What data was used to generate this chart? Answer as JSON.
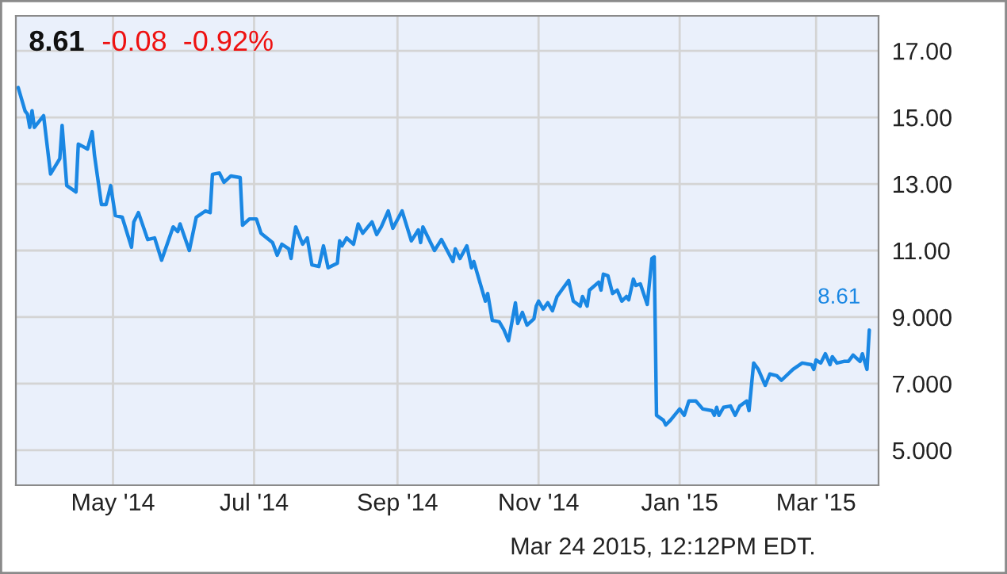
{
  "chart_data": {
    "type": "line",
    "title": "8.61",
    "subtitle": "-0.08  -0.92%",
    "annotations": [
      {
        "text": "8.61",
        "x": "2015-03-24",
        "y": 8.61
      },
      "Mar 24 2015, 12:12PM EDT."
    ],
    "x": [
      "2014-03-21",
      "2014-03-24",
      "2014-03-25",
      "2014-03-26",
      "2014-03-27",
      "2014-03-28",
      "2014-04-01",
      "2014-04-04",
      "2014-04-08",
      "2014-04-09",
      "2014-04-11",
      "2014-04-15",
      "2014-04-16",
      "2014-04-20",
      "2014-04-22",
      "2014-04-23",
      "2014-04-26",
      "2014-04-28",
      "2014-04-30",
      "2014-05-02",
      "2014-05-05",
      "2014-05-09",
      "2014-05-10",
      "2014-05-12",
      "2014-05-16",
      "2014-05-19",
      "2014-05-22",
      "2014-05-27",
      "2014-05-29",
      "2014-05-30",
      "2014-06-03",
      "2014-06-06",
      "2014-06-10",
      "2014-06-12",
      "2014-06-13",
      "2014-06-16",
      "2014-06-18",
      "2014-06-21",
      "2014-06-25",
      "2014-06-26",
      "2014-06-29",
      "2014-07-02",
      "2014-07-04",
      "2014-07-09",
      "2014-07-11",
      "2014-07-13",
      "2014-07-16",
      "2014-07-17",
      "2014-07-18",
      "2014-07-19",
      "2014-07-22",
      "2014-07-24",
      "2014-07-26",
      "2014-07-29",
      "2014-07-31",
      "2014-08-02",
      "2014-08-06",
      "2014-08-07",
      "2014-08-08",
      "2014-08-10",
      "2014-08-13",
      "2014-08-15",
      "2014-08-17",
      "2014-08-21",
      "2014-08-23",
      "2014-08-25",
      "2014-08-28",
      "2014-08-30",
      "2014-09-03",
      "2014-09-07",
      "2014-09-10",
      "2014-09-11",
      "2014-09-12",
      "2014-09-17",
      "2014-09-20",
      "2014-09-25",
      "2014-09-26",
      "2014-09-28",
      "2014-10-01",
      "2014-10-03",
      "2014-10-04",
      "2014-10-09",
      "2014-10-10",
      "2014-10-12",
      "2014-10-15",
      "2014-10-17",
      "2014-10-19",
      "2014-10-22",
      "2014-10-23",
      "2014-10-25",
      "2014-10-27",
      "2014-10-30",
      "2014-10-31",
      "2014-11-01",
      "2014-11-03",
      "2014-11-05",
      "2014-11-07",
      "2014-11-09",
      "2014-11-14",
      "2014-11-16",
      "2014-11-19",
      "2014-11-20",
      "2014-11-22",
      "2014-11-23",
      "2014-11-27",
      "2014-11-28",
      "2014-11-29",
      "2014-12-01",
      "2014-12-03",
      "2014-12-05",
      "2014-12-07",
      "2014-12-09",
      "2014-12-10",
      "2014-12-12",
      "2014-12-13",
      "2014-12-15",
      "2014-12-18",
      "2014-12-20",
      "2014-12-21",
      "2014-12-22",
      "2014-12-25",
      "2014-12-26",
      "2014-12-28",
      "2015-01-01",
      "2015-01-03",
      "2015-01-05",
      "2015-01-08",
      "2015-01-11",
      "2015-01-15",
      "2015-01-16",
      "2015-01-17",
      "2015-01-18",
      "2015-01-20",
      "2015-01-23",
      "2015-01-25",
      "2015-01-27",
      "2015-01-30",
      "2015-01-31",
      "2015-02-02",
      "2015-02-04",
      "2015-02-07",
      "2015-02-09",
      "2015-02-12",
      "2015-02-14",
      "2015-02-19",
      "2015-02-23",
      "2015-02-27",
      "2015-02-28",
      "2015-03-01",
      "2015-03-03",
      "2015-03-05",
      "2015-03-07",
      "2015-03-08",
      "2015-03-10",
      "2015-03-13",
      "2015-03-15",
      "2015-03-17",
      "2015-03-20",
      "2015-03-21",
      "2015-03-23",
      "2015-03-24"
    ],
    "series": [
      {
        "color": "#1a87e3",
        "values": [
          15.9,
          15.19,
          15.1,
          14.7,
          15.2,
          14.7,
          15.05,
          13.3,
          13.76,
          14.76,
          12.95,
          12.76,
          14.2,
          14.05,
          14.57,
          13.86,
          12.38,
          12.38,
          12.95,
          12.05,
          12.0,
          11.1,
          11.86,
          12.14,
          11.33,
          11.38,
          10.71,
          11.71,
          11.57,
          11.8,
          11.0,
          12.0,
          12.19,
          12.14,
          13.29,
          13.33,
          13.05,
          13.24,
          13.19,
          11.76,
          11.95,
          11.95,
          11.52,
          11.24,
          10.86,
          11.19,
          11.05,
          10.76,
          11.29,
          11.71,
          11.19,
          11.38,
          10.57,
          10.52,
          11.14,
          10.48,
          10.62,
          11.29,
          11.14,
          11.38,
          11.19,
          11.8,
          11.52,
          11.86,
          11.48,
          11.71,
          12.19,
          11.67,
          12.19,
          11.29,
          11.62,
          11.24,
          11.71,
          11.0,
          11.33,
          10.67,
          11.05,
          10.76,
          11.14,
          10.48,
          10.67,
          9.48,
          9.71,
          8.9,
          8.86,
          8.62,
          8.29,
          9.43,
          8.81,
          9.14,
          8.76,
          8.95,
          9.33,
          9.48,
          9.24,
          9.43,
          9.19,
          9.62,
          10.1,
          9.48,
          9.33,
          9.62,
          9.33,
          9.81,
          10.05,
          9.81,
          10.29,
          10.24,
          9.71,
          9.81,
          9.48,
          9.62,
          9.52,
          10.14,
          9.95,
          10.0,
          9.38,
          10.76,
          10.81,
          6.05,
          5.9,
          5.76,
          5.9,
          6.24,
          6.05,
          6.48,
          6.48,
          6.24,
          6.19,
          6.05,
          6.29,
          6.05,
          6.29,
          6.33,
          6.05,
          6.33,
          6.48,
          6.19,
          7.62,
          7.43,
          6.95,
          7.29,
          7.24,
          7.1,
          7.43,
          7.62,
          7.57,
          7.43,
          7.71,
          7.62,
          7.9,
          7.57,
          7.81,
          7.62,
          7.67,
          7.67,
          7.86,
          7.67,
          7.9,
          7.43,
          8.61
        ]
      }
    ],
    "xlim": [
      "2014-03-20",
      "2015-03-28"
    ],
    "xticks": [
      {
        "value": "2014-05-01",
        "label": "May '14"
      },
      {
        "value": "2014-07-01",
        "label": "Jul '14"
      },
      {
        "value": "2014-09-01",
        "label": "Sep '14"
      },
      {
        "value": "2014-11-01",
        "label": "Nov '14"
      },
      {
        "value": "2015-01-01",
        "label": "Jan '15"
      },
      {
        "value": "2015-03-01",
        "label": "Mar '15"
      }
    ],
    "ylim": [
      3.95,
      18.05
    ],
    "yticks": [
      {
        "value": 17,
        "label": "17.00"
      },
      {
        "value": 15,
        "label": "15.00"
      },
      {
        "value": 13,
        "label": "13.00"
      },
      {
        "value": 11,
        "label": "11.00"
      },
      {
        "value": 9,
        "label": "9.000"
      },
      {
        "value": 7,
        "label": "7.000"
      },
      {
        "value": 5,
        "label": "5.000"
      }
    ],
    "grid": true,
    "line_style": "solid"
  }
}
